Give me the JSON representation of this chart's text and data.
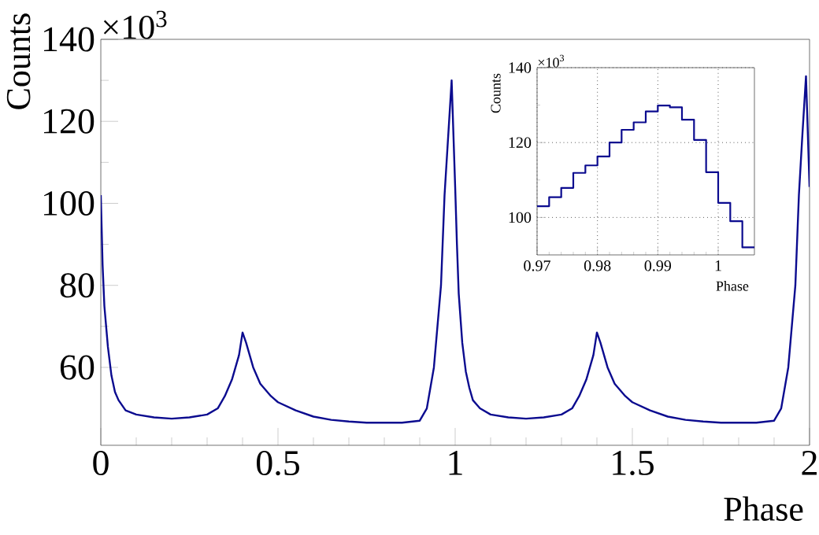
{
  "chart_data": [
    {
      "type": "line",
      "xlabel": "Phase",
      "ylabel": "Counts",
      "annotations": [
        "×10$^{3}$"
      ],
      "color": "#0b0b8f",
      "grid": false,
      "xlim": [
        0,
        2
      ],
      "ylim": [
        41,
        140
      ],
      "xticks": [
        0,
        0.5,
        1,
        1.5,
        2
      ],
      "yticks": [
        60,
        80,
        100,
        120,
        140
      ],
      "x": [
        0,
        0.005,
        0.01,
        0.02,
        0.03,
        0.04,
        0.05,
        0.07,
        0.1,
        0.15,
        0.2,
        0.25,
        0.3,
        0.33,
        0.35,
        0.37,
        0.39,
        0.4,
        0.41,
        0.43,
        0.45,
        0.48,
        0.5,
        0.55,
        0.6,
        0.65,
        0.7,
        0.75,
        0.8,
        0.85,
        0.9,
        0.92,
        0.94,
        0.96,
        0.97,
        0.98,
        0.99,
        1.0,
        1.005,
        1.01,
        1.02,
        1.03,
        1.04,
        1.05,
        1.07,
        1.1,
        1.15,
        1.2,
        1.25,
        1.3,
        1.33,
        1.35,
        1.37,
        1.39,
        1.4,
        1.41,
        1.43,
        1.45,
        1.48,
        1.5,
        1.55,
        1.6,
        1.65,
        1.7,
        1.75,
        1.8,
        1.85,
        1.9,
        1.92,
        1.94,
        1.96,
        1.97,
        1.98,
        1.99,
        2.0
      ],
      "values": [
        102,
        85,
        75,
        65,
        58,
        54,
        52,
        49.5,
        48.5,
        47.8,
        47.5,
        47.8,
        48.5,
        50,
        53,
        57,
        63,
        68.5,
        66,
        60,
        56,
        53,
        51.5,
        49.5,
        48,
        47.2,
        46.8,
        46.5,
        46.5,
        46.5,
        47,
        50,
        60,
        80,
        102,
        116,
        130,
        104,
        90,
        78,
        66,
        59,
        55,
        52,
        50,
        48.5,
        47.8,
        47.5,
        47.8,
        48.5,
        50,
        53,
        57,
        63,
        68.5,
        66,
        60,
        56,
        53,
        51.5,
        49.5,
        48,
        47.2,
        46.8,
        46.5,
        46.5,
        46.5,
        47,
        50,
        60,
        80,
        102,
        117,
        131,
        104
      ]
    },
    {
      "type": "histogram",
      "xlabel": "Phase",
      "ylabel": "Counts",
      "annotations": [
        "×10$^{3}$"
      ],
      "color": "#0b0b8f",
      "grid": true,
      "xlim": [
        0.97,
        1.006
      ],
      "ylim": [
        90,
        140
      ],
      "xticks": [
        0.97,
        0.98,
        0.99,
        {
          "value": 1,
          "label": "1"
        }
      ],
      "yticks": [
        100,
        120,
        140
      ],
      "bins": [
        0.97,
        0.972,
        0.974,
        0.976,
        0.978,
        0.98,
        0.982,
        0.984,
        0.986,
        0.988,
        0.99,
        0.992,
        0.994,
        0.996,
        0.998,
        1.0,
        1.002,
        1.004,
        1.006
      ],
      "values": [
        103,
        105.4,
        107.9,
        111.9,
        113.9,
        116.3,
        120,
        123.4,
        125.4,
        128.3,
        129.9,
        129.4,
        126.1,
        120.7,
        112.1,
        103.9,
        99,
        92
      ]
    }
  ]
}
